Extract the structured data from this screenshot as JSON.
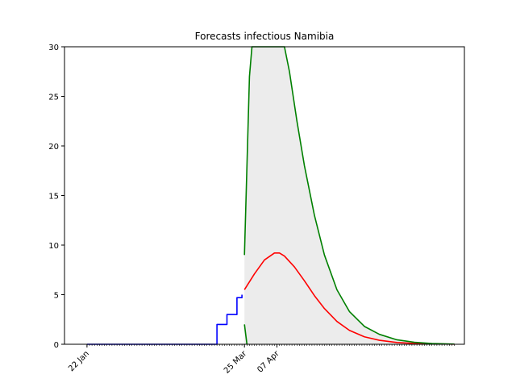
{
  "chart_data": {
    "type": "line",
    "title": "Forecasts infectious Namibia",
    "xlabel": "",
    "ylabel": "",
    "ylim": [
      0,
      30
    ],
    "xlim": [
      "2020-01-13",
      "2020-06-21"
    ],
    "grid": false,
    "legend": "none",
    "y_ticks": [
      0,
      5,
      10,
      15,
      20,
      25,
      30
    ],
    "x_ticks": [
      {
        "date": "2020-01-22",
        "label": "22 Jan"
      },
      {
        "date": "2020-03-25",
        "label": "25 Mar"
      },
      {
        "date": "2020-04-07",
        "label": "07 Apr"
      }
    ],
    "minor_tick_start": "2020-01-22",
    "minor_tick_end": "2020-06-17",
    "series": [
      {
        "color": "#0000ff",
        "x": [
          "2020-01-22",
          "2020-03-13",
          "2020-03-14",
          "2020-03-17",
          "2020-03-18",
          "2020-03-21",
          "2020-03-22",
          "2020-03-24"
        ],
        "y": [
          0,
          0,
          2,
          2,
          3,
          3,
          4.7,
          5
        ],
        "step": true
      },
      {
        "color": "#ff0000",
        "x": [
          "2020-03-25",
          "2020-03-29",
          "2020-04-02",
          "2020-04-06",
          "2020-04-08",
          "2020-04-10",
          "2020-04-14",
          "2020-04-18",
          "2020-04-22",
          "2020-04-26",
          "2020-05-01",
          "2020-05-06",
          "2020-05-12",
          "2020-05-18",
          "2020-05-25",
          "2020-06-01",
          "2020-06-08",
          "2020-06-17"
        ],
        "y": [
          5.5,
          7.1,
          8.5,
          9.2,
          9.2,
          8.9,
          7.8,
          6.4,
          4.9,
          3.6,
          2.3,
          1.4,
          0.75,
          0.4,
          0.18,
          0.08,
          0.04,
          0.01
        ]
      },
      {
        "color": "#008000",
        "x": [
          "2020-03-25",
          "2020-03-26",
          "2020-03-27",
          "2020-03-28",
          "2020-04-01",
          "2020-04-10",
          "2020-04-12",
          "2020-04-15",
          "2020-04-18",
          "2020-04-22",
          "2020-04-26",
          "2020-05-01",
          "2020-05-06",
          "2020-05-12",
          "2020-05-18",
          "2020-05-25",
          "2020-06-01",
          "2020-06-08",
          "2020-06-17"
        ],
        "y": [
          9,
          18,
          27,
          30,
          30,
          30,
          27.5,
          22.5,
          18,
          13,
          9,
          5.5,
          3.3,
          1.8,
          1.0,
          0.45,
          0.2,
          0.08,
          0.02
        ]
      },
      {
        "color": "#008000",
        "x": [
          "2020-03-25",
          "2020-03-26"
        ],
        "y": [
          2,
          0
        ]
      }
    ],
    "band": {
      "color": "#ececec",
      "x": [
        "2020-03-25",
        "2020-03-26",
        "2020-03-27",
        "2020-03-28",
        "2020-04-01",
        "2020-04-10",
        "2020-04-12",
        "2020-04-15",
        "2020-04-18",
        "2020-04-22",
        "2020-04-26",
        "2020-05-01",
        "2020-05-06",
        "2020-05-12",
        "2020-05-18",
        "2020-05-25",
        "2020-06-01",
        "2020-06-08",
        "2020-06-17"
      ],
      "upper": [
        9,
        18,
        27,
        30,
        30,
        30,
        27.5,
        22.5,
        18,
        13,
        9,
        5.5,
        3.3,
        1.8,
        1.0,
        0.45,
        0.2,
        0.08,
        0.02
      ],
      "lower": [
        0,
        0,
        0,
        0,
        0,
        0,
        0,
        0,
        0,
        0,
        0,
        0,
        0,
        0,
        0,
        0,
        0,
        0,
        0
      ]
    }
  }
}
